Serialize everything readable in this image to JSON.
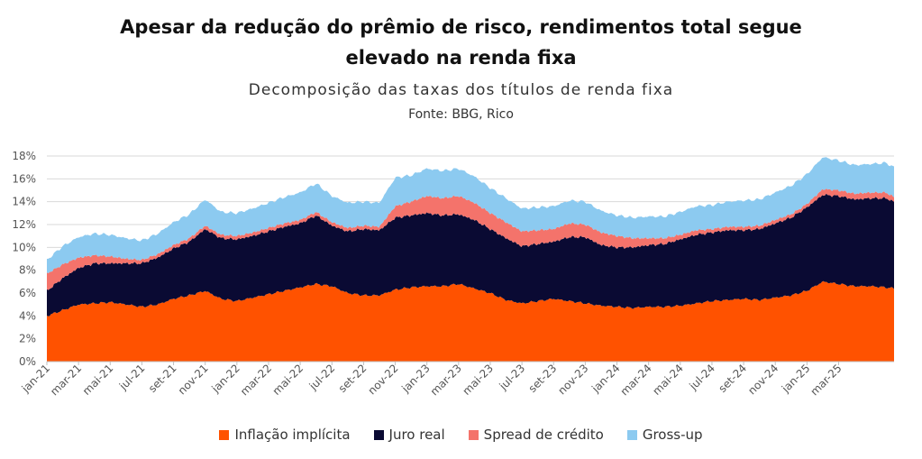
{
  "chart_data": {
    "type": "area",
    "stacked": true,
    "title_line1": "Apesar da redução do prêmio de risco, rendimentos total segue",
    "title_line2": "elevado na renda fixa",
    "subtitle": "Decomposição das taxas dos títulos de renda fixa",
    "source": "Fonte: BBG, Rico",
    "ylim": [
      0,
      18
    ],
    "y_ticks": [
      "0%",
      "2%",
      "4%",
      "6%",
      "8%",
      "10%",
      "12%",
      "14%",
      "16%",
      "18%"
    ],
    "x_ticks": [
      "jan-21",
      "mar-21",
      "mai-21",
      "jul-21",
      "set-21",
      "nov-21",
      "jan-22",
      "mar-22",
      "mai-22",
      "jul-22",
      "set-22",
      "nov-22",
      "jan-23",
      "mar-23",
      "mai-23",
      "jul-23",
      "set-23",
      "nov-23",
      "jan-24",
      "mar-24",
      "mai-24",
      "jul-24",
      "set-24",
      "nov-24",
      "jan-25",
      "mar-25"
    ],
    "x_range_months": [
      0,
      53.5
    ],
    "anchor_months": [
      0,
      1,
      2,
      3,
      4,
      5,
      6,
      7,
      8,
      9,
      10,
      11,
      12,
      13,
      14,
      15,
      16,
      17,
      18,
      19,
      20,
      21,
      22,
      23,
      24,
      25,
      26,
      27,
      28,
      29,
      30,
      31,
      32,
      33,
      34,
      35,
      36,
      37,
      38,
      39,
      40,
      41,
      42,
      43,
      44,
      45,
      46,
      47,
      48,
      49,
      50,
      51,
      52,
      53,
      53.5
    ],
    "series": [
      {
        "name": "Inflação implícita",
        "color": "#ff5200",
        "values": [
          4.0,
          4.5,
          5.0,
          5.1,
          5.2,
          5.0,
          4.8,
          5.0,
          5.5,
          5.8,
          6.2,
          5.5,
          5.3,
          5.6,
          5.9,
          6.2,
          6.5,
          6.8,
          6.6,
          6.0,
          5.8,
          5.8,
          6.3,
          6.5,
          6.6,
          6.6,
          6.8,
          6.4,
          6.0,
          5.4,
          5.1,
          5.3,
          5.5,
          5.3,
          5.1,
          4.9,
          4.8,
          4.7,
          4.8,
          4.8,
          4.9,
          5.1,
          5.3,
          5.4,
          5.5,
          5.4,
          5.6,
          5.8,
          6.2,
          7.0,
          6.8,
          6.6,
          6.6,
          6.5,
          6.4
        ]
      },
      {
        "name": "Juro real",
        "color": "#0a0a33",
        "values": [
          2.2,
          2.8,
          3.2,
          3.5,
          3.4,
          3.6,
          3.8,
          4.1,
          4.4,
          4.7,
          5.4,
          5.3,
          5.4,
          5.4,
          5.5,
          5.6,
          5.6,
          6.0,
          5.3,
          5.4,
          5.8,
          5.7,
          6.3,
          6.3,
          6.4,
          6.2,
          6.1,
          6.0,
          5.6,
          5.4,
          5.0,
          5.0,
          5.0,
          5.6,
          5.8,
          5.3,
          5.2,
          5.3,
          5.4,
          5.5,
          5.8,
          6.0,
          6.0,
          6.1,
          6.0,
          6.2,
          6.5,
          6.8,
          7.3,
          7.6,
          7.7,
          7.6,
          7.7,
          7.8,
          7.6
        ]
      },
      {
        "name": "Spread de crédito",
        "color": "#f4736b",
        "values": [
          1.5,
          1.2,
          0.9,
          0.7,
          0.6,
          0.4,
          0.3,
          0.3,
          0.3,
          0.3,
          0.3,
          0.3,
          0.3,
          0.3,
          0.3,
          0.3,
          0.3,
          0.3,
          0.3,
          0.3,
          0.3,
          0.3,
          1.0,
          1.2,
          1.5,
          1.5,
          1.6,
          1.5,
          1.4,
          1.4,
          1.3,
          1.2,
          1.1,
          1.2,
          1.1,
          1.1,
          1.0,
          0.8,
          0.6,
          0.5,
          0.4,
          0.4,
          0.3,
          0.3,
          0.3,
          0.3,
          0.3,
          0.3,
          0.3,
          0.5,
          0.5,
          0.5,
          0.5,
          0.5,
          0.4
        ]
      },
      {
        "name": "Gross-up",
        "color": "#8ccaf0",
        "values": [
          1.2,
          1.6,
          1.8,
          1.9,
          1.9,
          1.8,
          1.7,
          1.8,
          2.0,
          2.1,
          2.3,
          2.0,
          2.0,
          2.1,
          2.2,
          2.3,
          2.4,
          2.5,
          2.3,
          2.2,
          2.1,
          2.1,
          2.5,
          2.3,
          2.4,
          2.4,
          2.4,
          2.3,
          2.2,
          2.1,
          2.0,
          2.0,
          2.0,
          2.0,
          2.0,
          1.9,
          1.8,
          1.8,
          1.9,
          1.9,
          2.0,
          2.1,
          2.1,
          2.2,
          2.3,
          2.3,
          2.4,
          2.5,
          2.6,
          2.8,
          2.6,
          2.5,
          2.5,
          2.6,
          2.6
        ]
      }
    ],
    "legend_position": "bottom"
  }
}
